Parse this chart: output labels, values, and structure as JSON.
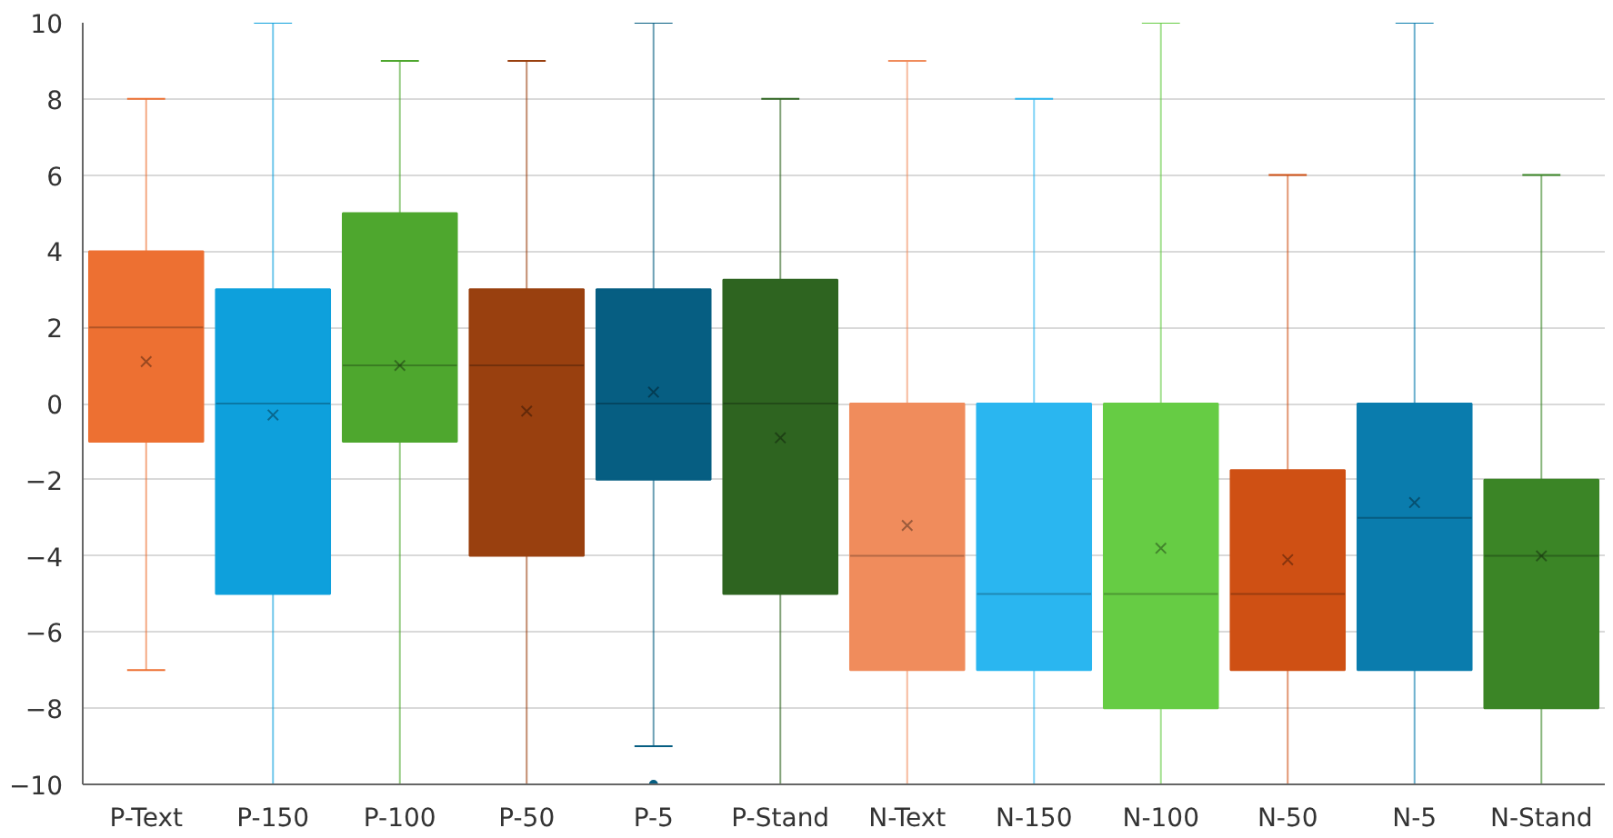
{
  "chart_data": {
    "type": "box",
    "categories": [
      "P-Text",
      "P-150",
      "P-100",
      "P-50",
      "P-5",
      "P-Stand",
      "N-Text",
      "N-150",
      "N-100",
      "N-50",
      "N-5",
      "N-Stand"
    ],
    "colors": [
      "#ed7032",
      "#0ea0dc",
      "#4ea72e",
      "#99400f",
      "#065e82",
      "#2e6420",
      "#f08c5c",
      "#2ab6f0",
      "#66cc44",
      "#cf5014",
      "#0a7cad",
      "#3b8526"
    ],
    "boxes": [
      {
        "low": -7,
        "q1": -1,
        "median": 2,
        "q3": 4,
        "high": 8,
        "mean": 1.1
      },
      {
        "low": -10,
        "q1": -5,
        "median": 0,
        "q3": 3,
        "high": 10,
        "mean": -0.3
      },
      {
        "low": -10,
        "q1": -1,
        "median": 1,
        "q3": 5,
        "high": 9,
        "mean": 1.0
      },
      {
        "low": -10,
        "q1": -4,
        "median": 1,
        "q3": 3,
        "high": 9,
        "mean": -0.2
      },
      {
        "low": -9,
        "q1": -2,
        "median": 0,
        "q3": 3,
        "high": 10,
        "mean": 0.3,
        "outliers": [
          -10
        ]
      },
      {
        "low": -10,
        "q1": -5,
        "median": 0,
        "q3": 3.25,
        "high": 8,
        "mean": -0.9
      },
      {
        "low": -10,
        "q1": -7,
        "median": -4,
        "q3": 0,
        "high": 9,
        "mean": -3.2
      },
      {
        "low": -10,
        "q1": -7,
        "median": -5,
        "q3": 0,
        "high": 8
      },
      {
        "low": -10,
        "q1": -8,
        "median": -5,
        "q3": 0,
        "high": 10,
        "mean": -3.8
      },
      {
        "low": -10,
        "q1": -7,
        "median": -5,
        "q3": -1.75,
        "high": 6,
        "mean": -4.1
      },
      {
        "low": -10,
        "q1": -7,
        "median": -3,
        "q3": 0,
        "high": 10,
        "mean": -2.6
      },
      {
        "low": -10,
        "q1": -8,
        "median": -4,
        "q3": -2,
        "high": 6,
        "mean": -4.0
      }
    ],
    "ylim": [
      -10,
      10
    ],
    "yticks": [
      -10,
      -8,
      -6,
      -4,
      -2,
      0,
      2,
      4,
      6,
      8,
      10
    ],
    "grid": "y"
  }
}
